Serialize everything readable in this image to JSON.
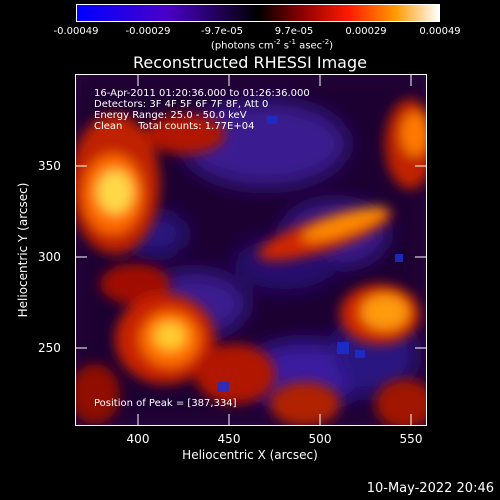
{
  "colorbar": {
    "ticks": [
      "-0.00049",
      "-0.00029",
      "-9.7e-05",
      "9.7e-05",
      "0.00029",
      "0.00049"
    ],
    "units_main": "(photons cm",
    "units_sup1": "-2",
    "units_mid": " s",
    "units_sup2": "-1",
    "units_mid2": " asec",
    "units_sup3": "-2",
    "units_end": ")"
  },
  "title": "Reconstructed RHESSI Image",
  "annotations": {
    "time_range": "16-Apr-2011 01:20:36.000 to 01:26:36.000",
    "detectors": "Detectors: 3F 4F 5F 6F 7F 8F, Att 0",
    "energy": "Energy Range: 25.0 - 50.0 keV",
    "clean": "Clean     Total counts: 1.77E+04",
    "peak": "Position of Peak = [387,334]"
  },
  "axes": {
    "xlabel": "Heliocentric X (arcsec)",
    "ylabel": "Heliocentric Y (arcsec)",
    "xticks": [
      "400",
      "450",
      "500",
      "550"
    ],
    "yticks": [
      "350",
      "300",
      "250"
    ]
  },
  "timestamp": "10-May-2022 20:46",
  "colors": {
    "background": "#000000",
    "foreground": "#ffffff"
  }
}
